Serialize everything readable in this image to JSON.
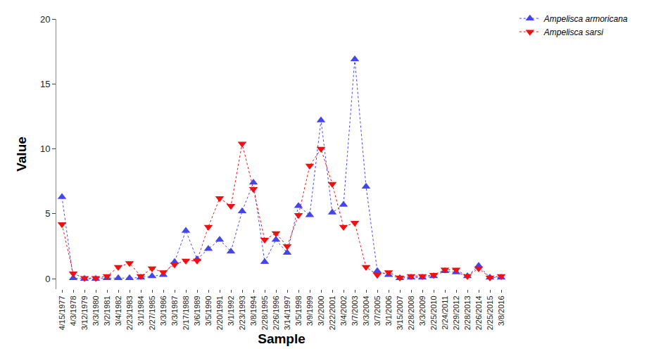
{
  "chart_data": {
    "type": "line",
    "x_label": "Sample",
    "y_label": "Value",
    "categories": [
      "4/15/1977",
      "4/3/1978",
      "3/12/1979",
      "3/3/1980",
      "3/2/1981",
      "3/4/1982",
      "2/23/1983",
      "3/1/1984",
      "2/27/1985",
      "3/3/1986",
      "3/3/1987",
      "2/17/1988",
      "3/6/1989",
      "3/5/1990",
      "2/20/1991",
      "3/1/1992",
      "2/23/1993",
      "3/8/1994",
      "2/28/1995",
      "2/26/1996",
      "3/14/1997",
      "3/5/1998",
      "3/9/1999",
      "3/2/2000",
      "2/22/2001",
      "3/4/2002",
      "3/7/2003",
      "3/3/2004",
      "3/7/2005",
      "3/1/2006",
      "3/15/2007",
      "2/28/2008",
      "3/3/2009",
      "2/25/2010",
      "2/24/2011",
      "2/29/2012",
      "2/28/2013",
      "2/26/2014",
      "2/25/2015",
      "3/8/2016"
    ],
    "series": [
      {
        "name": "Ampelisca armoricana",
        "color": "#4545ee",
        "marker": "triangle-up",
        "line_style": "dot",
        "values": [
          6.3,
          0.05,
          0,
          0,
          0.05,
          0.05,
          0.05,
          0.1,
          0.2,
          0.3,
          1.3,
          3.7,
          1.5,
          2.3,
          3.0,
          2.1,
          5.2,
          7.4,
          1.3,
          3.0,
          2.0,
          5.6,
          4.9,
          12.2,
          5.1,
          5.7,
          16.9,
          7.1,
          0.6,
          0.3,
          0.05,
          0.1,
          0.1,
          0.2,
          0.6,
          0.5,
          0.2,
          1.0,
          0.1,
          0.1
        ]
      },
      {
        "name": "Ampelisca sarsi",
        "color": "#ee1111",
        "marker": "triangle-down",
        "line_style": "dot",
        "values": [
          4.2,
          0.4,
          0.05,
          0.05,
          0.2,
          0.9,
          1.2,
          0.2,
          0.8,
          0.5,
          1.1,
          1.4,
          1.4,
          4.0,
          6.2,
          5.6,
          10.4,
          6.9,
          3.0,
          3.5,
          2.5,
          4.9,
          8.7,
          10.0,
          7.3,
          4.0,
          4.3,
          0.9,
          0.3,
          0.5,
          0.1,
          0.2,
          0.2,
          0.3,
          0.7,
          0.7,
          0.2,
          0.8,
          0.1,
          0.2
        ]
      }
    ],
    "ylim": [
      -0.8,
      20
    ],
    "yticks": [
      0,
      5,
      10,
      15,
      20
    ],
    "grid": false,
    "legend": "top right"
  }
}
